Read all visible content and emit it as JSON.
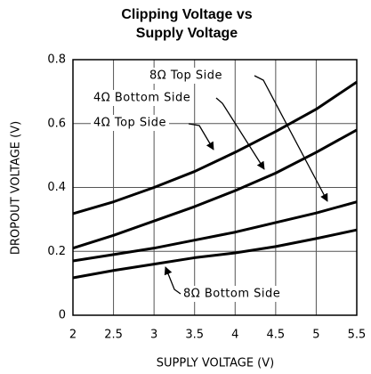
{
  "chart_data": {
    "type": "line",
    "title": [
      "Clipping Voltage vs",
      "Supply Voltage"
    ],
    "x_label": "SUPPLY VOLTAGE (V)",
    "y_label": "DROPOUT VOLTAGE (V)",
    "x": [
      2,
      2.5,
      3,
      3.5,
      4,
      4.5,
      5,
      5.5
    ],
    "series": [
      {
        "name": "4Ω Top Side",
        "color": "#000000",
        "values": [
          0.318,
          0.355,
          0.4,
          0.45,
          0.51,
          0.575,
          0.645,
          0.73
        ]
      },
      {
        "name": "4Ω Bottom Side",
        "color": "#000000",
        "values": [
          0.21,
          0.25,
          0.295,
          0.34,
          0.39,
          0.445,
          0.51,
          0.58
        ]
      },
      {
        "name": "8Ω Top Side",
        "color": "#000000",
        "values": [
          0.17,
          0.19,
          0.21,
          0.235,
          0.26,
          0.29,
          0.32,
          0.355
        ]
      },
      {
        "name": "8Ω Bottom Side",
        "color": "#000000",
        "values": [
          0.117,
          0.14,
          0.16,
          0.18,
          0.195,
          0.215,
          0.24,
          0.267
        ]
      }
    ],
    "xlim": [
      2,
      5.5
    ],
    "xticks": [
      2,
      2.5,
      3,
      3.5,
      4,
      4.5,
      5,
      5.5
    ],
    "ylim": [
      0,
      0.8
    ],
    "yticks": [
      0,
      0.2,
      0.4,
      0.6,
      0.8
    ],
    "grid": true
  }
}
